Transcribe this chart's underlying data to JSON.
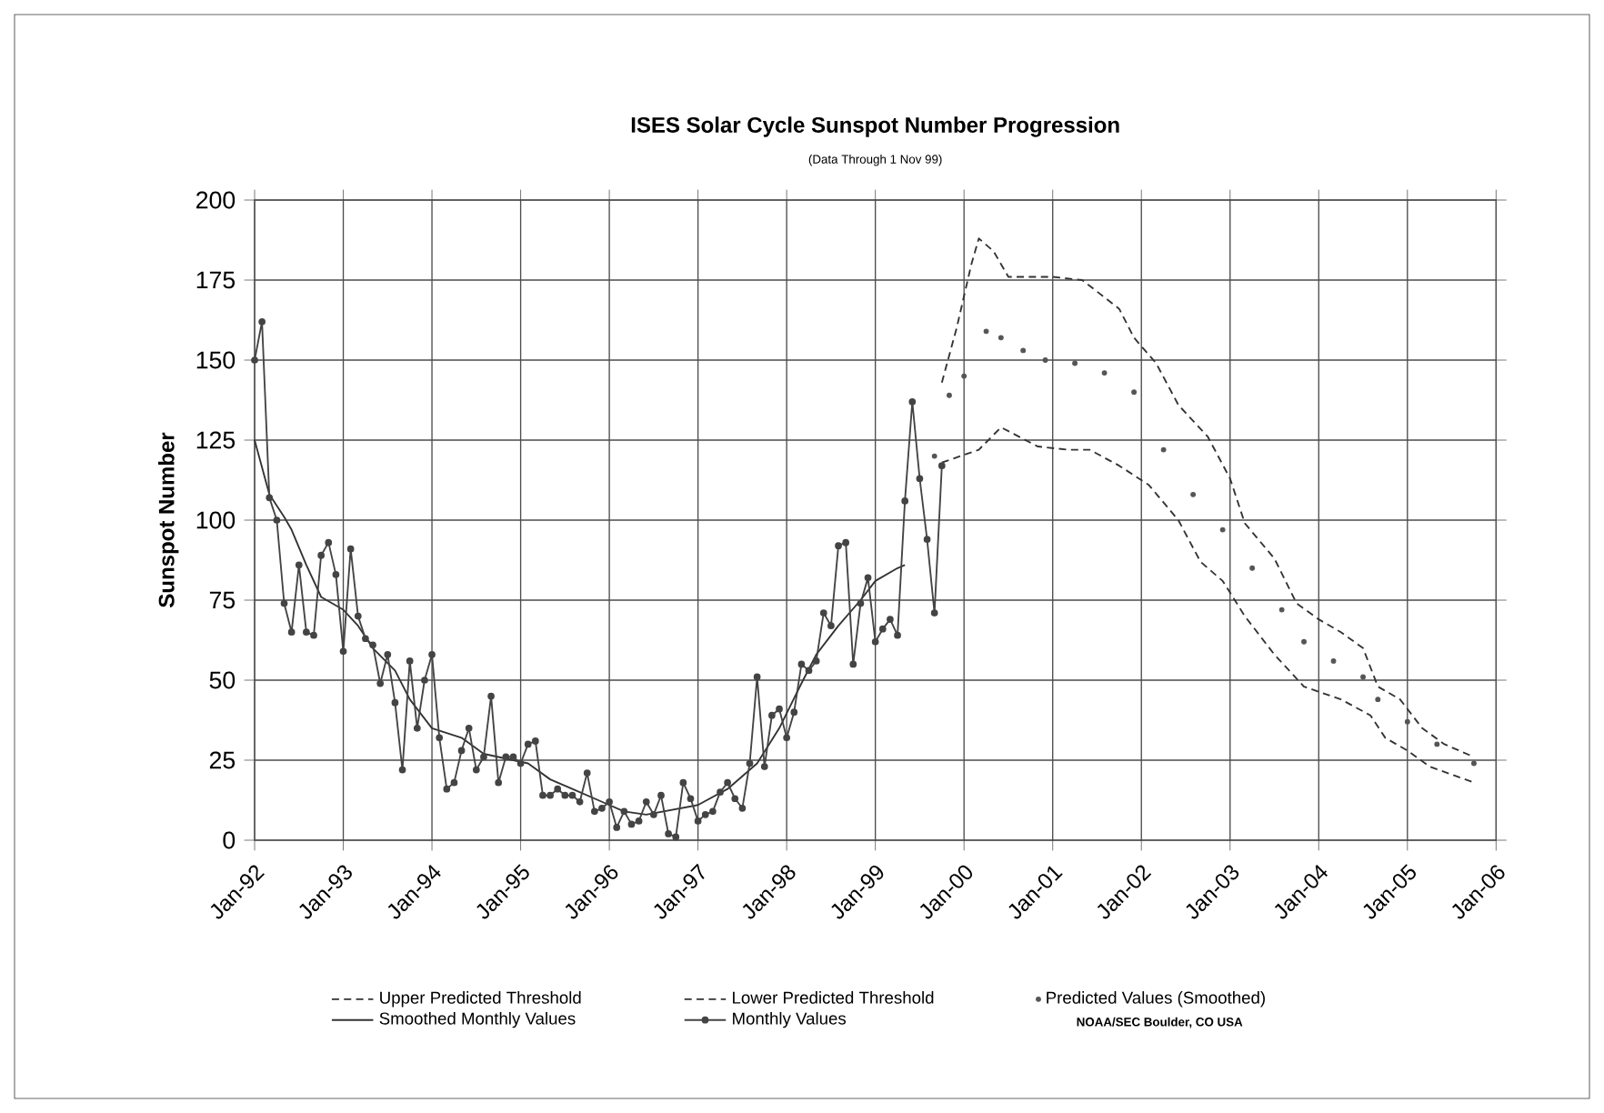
{
  "chart_data": {
    "type": "line",
    "title": "ISES Solar Cycle Sunspot Number Progression",
    "subtitle": "(Data Through 1 Nov 99)",
    "ylabel": "Sunspot Number",
    "xlim": [
      "1992-01",
      "2006-01"
    ],
    "ylim": [
      0,
      200
    ],
    "xticks": [
      {
        "value": "1992-01",
        "label": "Jan-92"
      },
      {
        "value": "1993-01",
        "label": "Jan-93"
      },
      {
        "value": "1994-01",
        "label": "Jan-94"
      },
      {
        "value": "1995-01",
        "label": "Jan-95"
      },
      {
        "value": "1996-01",
        "label": "Jan-96"
      },
      {
        "value": "1997-01",
        "label": "Jan-97"
      },
      {
        "value": "1998-01",
        "label": "Jan-98"
      },
      {
        "value": "1999-01",
        "label": "Jan-99"
      },
      {
        "value": "2000-01",
        "label": "Jan-00"
      },
      {
        "value": "2001-01",
        "label": "Jan-01"
      },
      {
        "value": "2002-01",
        "label": "Jan-02"
      },
      {
        "value": "2003-01",
        "label": "Jan-03"
      },
      {
        "value": "2004-01",
        "label": "Jan-04"
      },
      {
        "value": "2005-01",
        "label": "Jan-05"
      },
      {
        "value": "2006-01",
        "label": "Jan-06"
      }
    ],
    "yticks": [
      0,
      25,
      50,
      75,
      100,
      125,
      150,
      175,
      200
    ],
    "grid": true,
    "legend": "bottom",
    "annotations": [
      "NOAA/SEC Boulder, CO USA"
    ],
    "series": [
      {
        "name": "Upper Predicted Threshold",
        "type": "line",
        "line_style": "dashed",
        "color": "#333333",
        "x": [
          "1999-10",
          "1999-12",
          "2000-02",
          "2000-03",
          "2000-05",
          "2000-07",
          "2001-01",
          "2001-05",
          "2001-10",
          "2001-12",
          "2002-03",
          "2002-06",
          "2002-10",
          "2003-01",
          "2003-03",
          "2003-07",
          "2003-10",
          "2004-01",
          "2004-04",
          "2004-07",
          "2004-09",
          "2004-12",
          "2005-03",
          "2005-06",
          "2005-10"
        ],
        "values": [
          143,
          160,
          180,
          188,
          184,
          176,
          176,
          175,
          166,
          157,
          149,
          136,
          126,
          113,
          99,
          88,
          74,
          69,
          65,
          60,
          48,
          44,
          35,
          30,
          26
        ]
      },
      {
        "name": "Lower Predicted Threshold",
        "type": "line",
        "line_style": "dashed",
        "color": "#333333",
        "x": [
          "1999-10",
          "2000-03",
          "2000-06",
          "2000-11",
          "2001-03",
          "2001-06",
          "2001-10",
          "2002-02",
          "2002-06",
          "2002-09",
          "2002-12",
          "2003-03",
          "2003-07",
          "2003-11",
          "2004-04",
          "2004-08",
          "2004-10",
          "2005-01",
          "2005-04",
          "2005-10"
        ],
        "values": [
          118,
          122,
          129,
          123,
          122,
          122,
          117,
          111,
          100,
          87,
          81,
          70,
          58,
          48,
          44,
          39,
          32,
          28,
          23,
          18
        ]
      },
      {
        "name": "Predicted Values (Smoothed)",
        "type": "scatter",
        "marker": "circle",
        "color": "#555555",
        "x": [
          "1999-09",
          "1999-11",
          "2000-01",
          "2000-04",
          "2000-06",
          "2000-09",
          "2000-12",
          "2001-04",
          "2001-08",
          "2001-12",
          "2002-04",
          "2002-08",
          "2002-12",
          "2003-04",
          "2003-08",
          "2003-11",
          "2004-03",
          "2004-07",
          "2004-09",
          "2005-01",
          "2005-05",
          "2005-10"
        ],
        "values": [
          120,
          139,
          145,
          159,
          157,
          153,
          150,
          149,
          146,
          140,
          122,
          108,
          97,
          85,
          72,
          62,
          56,
          51,
          44,
          37,
          30,
          24
        ]
      },
      {
        "name": "Smoothed Monthly Values",
        "type": "line",
        "line_style": "solid",
        "color": "#333333",
        "x": [
          "1992-01",
          "1992-03",
          "1992-05",
          "1992-06",
          "1992-08",
          "1992-10",
          "1993-01",
          "1993-03",
          "1993-05",
          "1993-08",
          "1993-10",
          "1994-01",
          "1994-05",
          "1994-08",
          "1994-12",
          "1995-02",
          "1995-05",
          "1995-08",
          "1995-12",
          "1996-03",
          "1996-06",
          "1997-01",
          "1997-05",
          "1997-09",
          "1997-12",
          "1998-03",
          "1998-05",
          "1998-08",
          "1998-11",
          "1999-01",
          "1999-04",
          "1999-05"
        ],
        "values": [
          125,
          108,
          101,
          97,
          86,
          76,
          72,
          67,
          60,
          53,
          44,
          35,
          32,
          27,
          25,
          24,
          19,
          16,
          12,
          9,
          8,
          11,
          16,
          24,
          35,
          49,
          58,
          67,
          75,
          81,
          85,
          86
        ]
      },
      {
        "name": "Monthly Values",
        "type": "line",
        "line_style": "solid",
        "marker": "circle",
        "color": "#444444",
        "x": [
          "1992-01",
          "1992-02",
          "1992-03",
          "1992-04",
          "1992-05",
          "1992-06",
          "1992-07",
          "1992-08",
          "1992-09",
          "1992-10",
          "1992-11",
          "1992-12",
          "1993-01",
          "1993-02",
          "1993-03",
          "1993-04",
          "1993-05",
          "1993-06",
          "1993-07",
          "1993-08",
          "1993-09",
          "1993-10",
          "1993-11",
          "1993-12",
          "1994-01",
          "1994-02",
          "1994-03",
          "1994-04",
          "1994-05",
          "1994-06",
          "1994-07",
          "1994-08",
          "1994-09",
          "1994-10",
          "1994-11",
          "1994-12",
          "1995-01",
          "1995-02",
          "1995-03",
          "1995-04",
          "1995-05",
          "1995-06",
          "1995-07",
          "1995-08",
          "1995-09",
          "1995-10",
          "1995-11",
          "1995-12",
          "1996-01",
          "1996-02",
          "1996-03",
          "1996-04",
          "1996-05",
          "1996-06",
          "1996-07",
          "1996-08",
          "1996-09",
          "1996-10",
          "1996-11",
          "1996-12",
          "1997-01",
          "1997-02",
          "1997-03",
          "1997-04",
          "1997-05",
          "1997-06",
          "1997-07",
          "1997-08",
          "1997-09",
          "1997-10",
          "1997-11",
          "1997-12",
          "1998-01",
          "1998-02",
          "1998-03",
          "1998-04",
          "1998-05",
          "1998-06",
          "1998-07",
          "1998-08",
          "1998-09",
          "1998-10",
          "1998-11",
          "1998-12",
          "1999-01",
          "1999-02",
          "1999-03",
          "1999-04",
          "1999-05",
          "1999-06",
          "1999-07",
          "1999-08",
          "1999-09",
          "1999-10"
        ],
        "values": [
          150,
          162,
          107,
          100,
          74,
          65,
          86,
          65,
          64,
          89,
          93,
          83,
          59,
          91,
          70,
          63,
          61,
          49,
          58,
          43,
          22,
          56,
          35,
          50,
          58,
          32,
          16,
          18,
          28,
          35,
          22,
          26,
          45,
          18,
          26,
          26,
          24,
          30,
          31,
          14,
          14,
          16,
          14,
          14,
          12,
          21,
          9,
          10,
          12,
          4,
          9,
          5,
          6,
          12,
          8,
          14,
          2,
          1,
          18,
          13,
          6,
          8,
          9,
          15,
          18,
          13,
          10,
          24,
          51,
          23,
          39,
          41,
          32,
          40,
          55,
          53,
          56,
          71,
          67,
          92,
          93,
          55,
          74,
          82,
          62,
          66,
          69,
          64,
          106,
          137,
          113,
          94,
          71,
          117
        ]
      }
    ]
  }
}
